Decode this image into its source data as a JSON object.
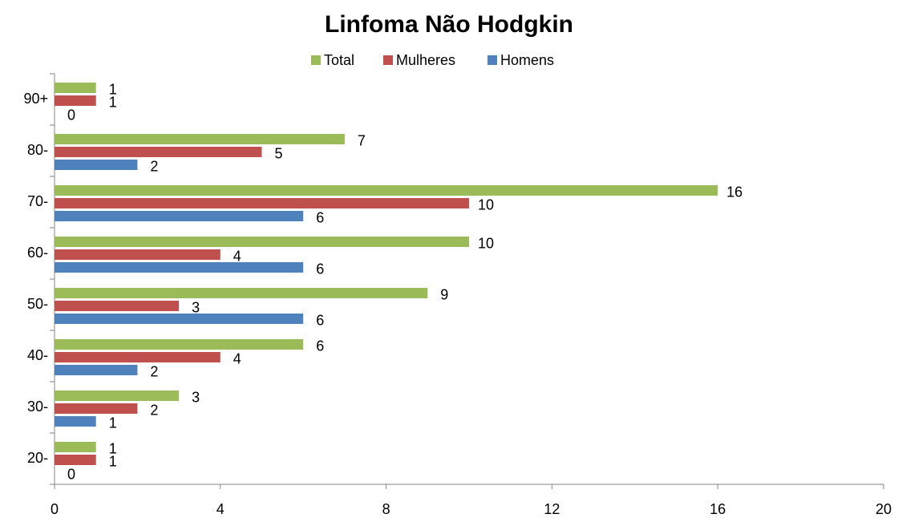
{
  "chart_data": {
    "type": "barh",
    "title": "Linfoma Não Hodgkin",
    "categories": [
      "20-",
      "30-",
      "40-",
      "50-",
      "60-",
      "70-",
      "80-",
      "90+"
    ],
    "series": [
      {
        "name": "Total",
        "color": "#9bbb59",
        "values": [
          1,
          3,
          6,
          9,
          10,
          16,
          7,
          1
        ]
      },
      {
        "name": "Mulheres",
        "color": "#c0504d",
        "values": [
          1,
          2,
          4,
          3,
          4,
          10,
          5,
          1
        ]
      },
      {
        "name": "Homens",
        "color": "#4f81bd",
        "values": [
          0,
          1,
          2,
          6,
          6,
          6,
          2,
          0
        ]
      }
    ],
    "xlim": [
      0,
      20
    ],
    "xticks": [
      0,
      4,
      8,
      12,
      16,
      20
    ],
    "legend": "top"
  }
}
